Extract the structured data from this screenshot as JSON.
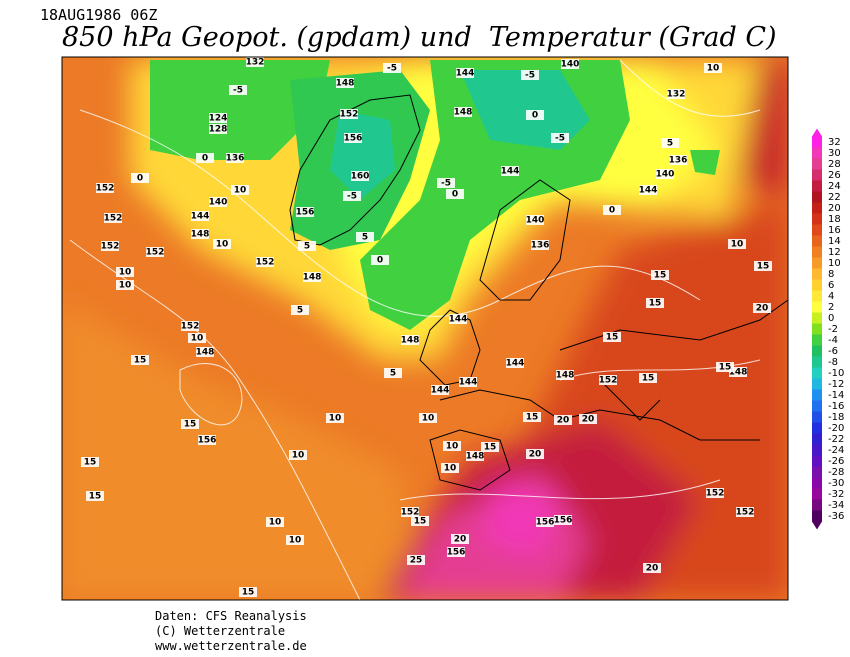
{
  "header": {
    "date": "18AUG1986 06Z",
    "title": "850 hPa Geopot. (gpdam) und  Temperatur (Grad C)"
  },
  "footer": {
    "source": "Daten: CFS Reanalysis",
    "copyright": "(C) Wetterzentrale",
    "url": "www.wetterzentrale.de"
  },
  "colorbar": {
    "levels": [
      32,
      30,
      28,
      26,
      24,
      22,
      20,
      18,
      16,
      14,
      12,
      10,
      8,
      6,
      4,
      2,
      0,
      -2,
      -4,
      -6,
      -8,
      -10,
      -12,
      -14,
      -16,
      -18,
      -20,
      -22,
      -24,
      -26,
      -28,
      -30,
      -32,
      -34,
      -36
    ],
    "colors": [
      "#ff20e8",
      "#f238b8",
      "#e43e92",
      "#d42e6c",
      "#c41c3e",
      "#b01420",
      "#c42018",
      "#d43218",
      "#e04a1a",
      "#e8661c",
      "#f08020",
      "#f89a28",
      "#ffb830",
      "#ffd030",
      "#ffe838",
      "#ffff40",
      "#c8f020",
      "#80e020",
      "#40d040",
      "#20c060",
      "#20c890",
      "#20d0c0",
      "#20b8e0",
      "#2090f0",
      "#2070f0",
      "#2050e8",
      "#2030e0",
      "#3020d0",
      "#4818c8",
      "#6010c0",
      "#7810b0",
      "#8808a8",
      "#98089c",
      "#780880",
      "#500060"
    ]
  },
  "map_labels": [
    132,
    -5,
    124,
    128,
    136,
    0,
    0,
    152,
    140,
    10,
    144,
    148,
    152,
    10,
    152,
    152,
    10,
    10,
    152,
    148,
    5,
    152,
    10,
    148,
    15,
    15,
    156,
    15,
    10,
    15,
    10,
    10,
    15,
    10,
    5,
    148,
    144,
    144,
    144,
    10,
    10,
    10,
    148,
    15,
    152,
    15,
    20,
    156,
    25,
    156,
    156,
    20,
    152,
    152,
    20,
    15,
    20,
    20,
    148,
    152,
    15,
    15,
    148,
    15,
    20,
    15,
    15,
    10,
    15,
    144,
    140,
    136,
    5,
    10,
    132,
    140,
    144,
    148,
    144,
    140,
    136,
    160,
    156,
    152,
    148,
    -5,
    -5,
    -5,
    -5,
    -5,
    156,
    0,
    0,
    5,
    5,
    144,
    0,
    0
  ]
}
